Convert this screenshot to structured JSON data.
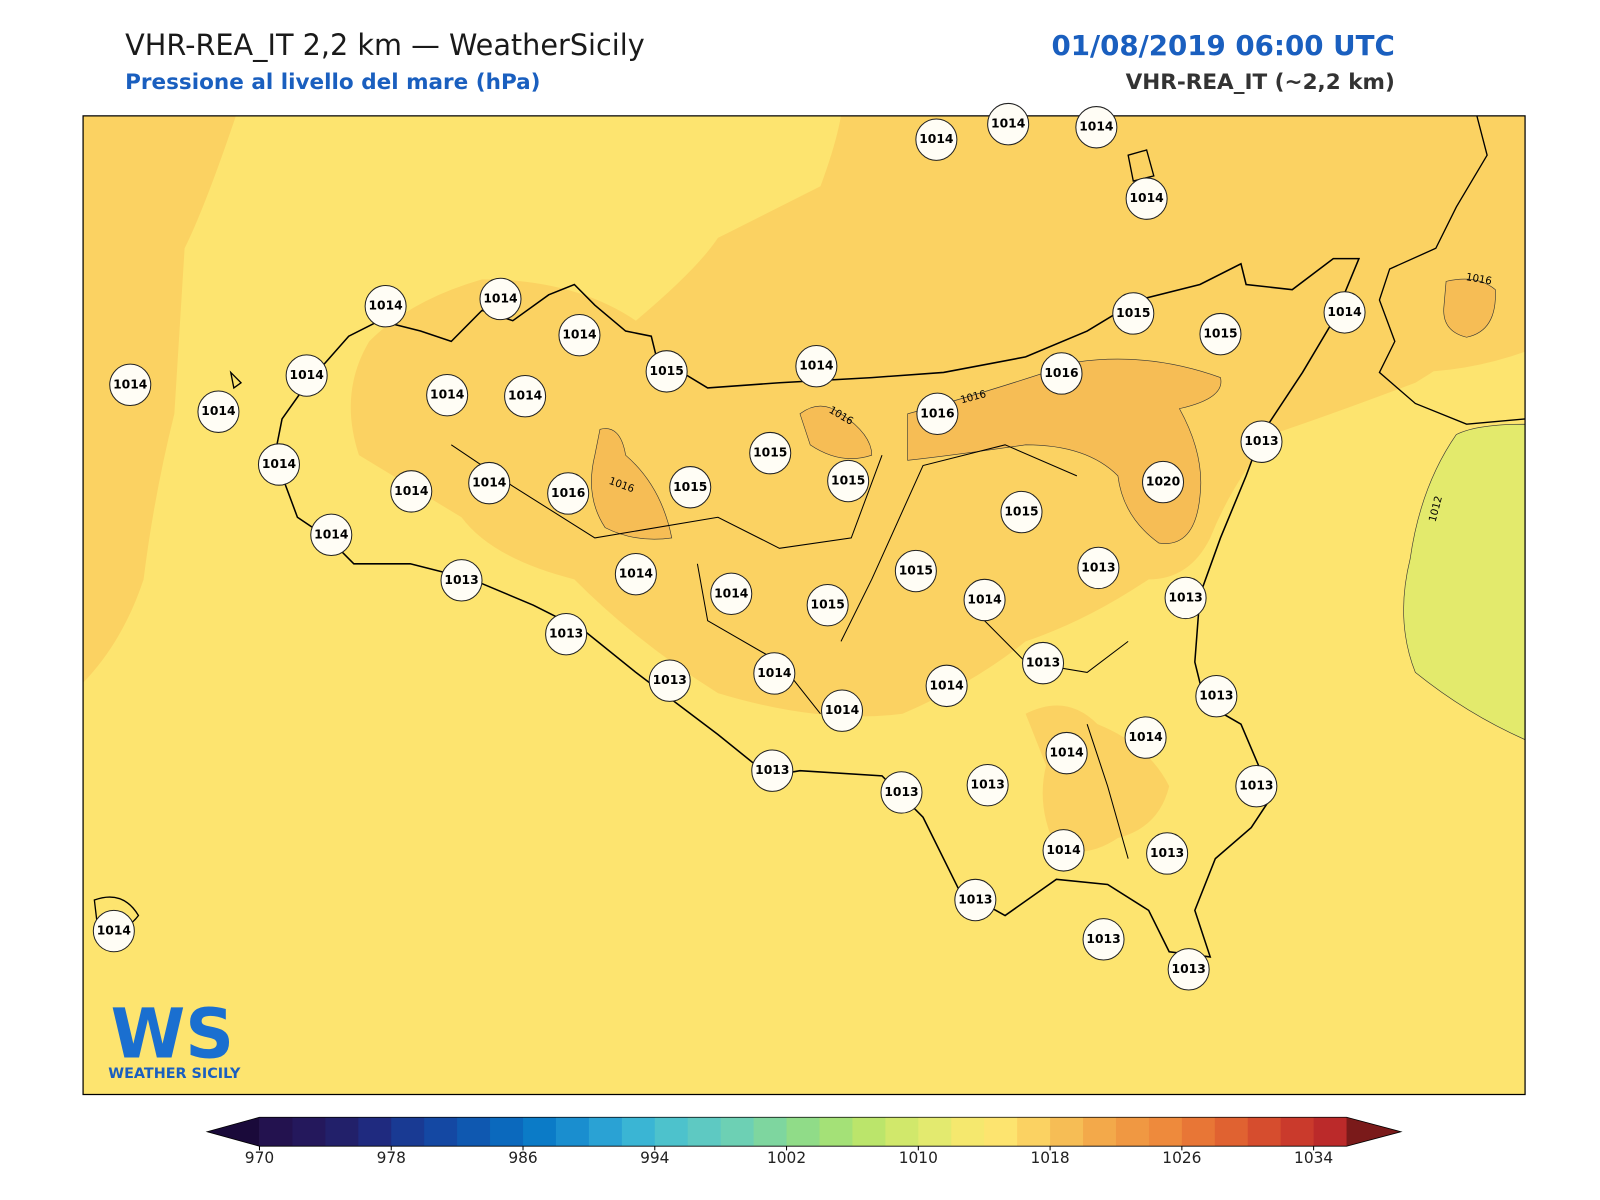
{
  "header": {
    "title": "VHR-REA_IT 2,2 km — WeatherSicily",
    "subtitle": "Pressione al livello del mare (hPa)",
    "date": "01/08/2019 06:00 UTC",
    "model": "VHR-REA_IT (~2,2 km)"
  },
  "stations": [
    1014,
    1014,
    1014,
    1014,
    1014,
    1014,
    1014,
    1014,
    1014,
    1014,
    1014,
    1014,
    1015,
    1014,
    1015,
    1015,
    1014,
    1016,
    1016,
    1013,
    1014,
    1014,
    1014,
    1016,
    1015,
    1015,
    1015,
    1020,
    1015,
    1014,
    1013,
    1014,
    1014,
    1015,
    1015,
    1014,
    1013,
    1013,
    1013,
    1013,
    1014,
    1014,
    1014,
    1013,
    1013,
    1014,
    1014,
    1013,
    1013,
    1013,
    1013,
    1014,
    1013,
    1013,
    1013,
    1013,
    1014
  ],
  "contour_labels": [
    1016,
    1016,
    1016,
    1016,
    1012
  ],
  "colorbar": {
    "lim": [
      970,
      1036
    ],
    "ticks": [
      970,
      978,
      986,
      994,
      1002,
      1010,
      1018,
      1026,
      1034
    ],
    "colors": [
      "#23124f",
      "#24185c",
      "#22206a",
      "#1f2a7f",
      "#193a93",
      "#1448a3",
      "#0f58b0",
      "#0b69bd",
      "#0b7bc7",
      "#1a8ecf",
      "#2aa2d4",
      "#3ab5d4",
      "#4dc2cc",
      "#5ec9c2",
      "#6dd0b4",
      "#7ed69f",
      "#90dc88",
      "#a4e177",
      "#bbe56b",
      "#d1e86b",
      "#e3ea6f",
      "#f5e86e",
      "#fde46f",
      "#fbd262",
      "#f6bd55",
      "#f3a94a",
      "#f09842",
      "#ee8a3c",
      "#e87636",
      "#e06231",
      "#d64d2e",
      "#ca3a2c",
      "#bb2a2a"
    ],
    "under": "#1a0a3a",
    "over": "#7a1a1a"
  },
  "logo": {
    "mark": "WS",
    "name": "WEATHER SICILY"
  }
}
